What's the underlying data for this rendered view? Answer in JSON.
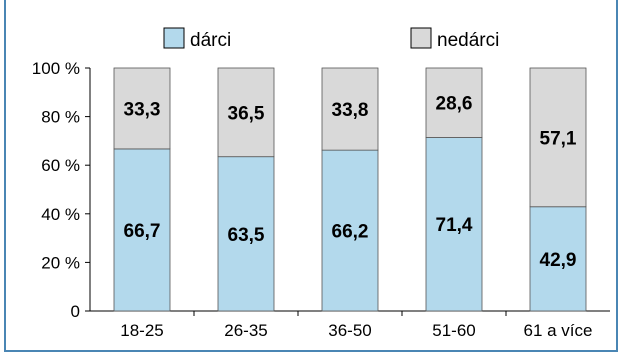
{
  "chart_data": {
    "type": "bar",
    "stacked": true,
    "categories": [
      "18-25",
      "26-35",
      "36-50",
      "51-60",
      "61 a více"
    ],
    "series": [
      {
        "name": "dárci",
        "values": [
          66.7,
          63.5,
          66.2,
          71.4,
          42.9
        ],
        "color": "#b3d9ec"
      },
      {
        "name": "nedárci",
        "values": [
          33.3,
          36.5,
          33.8,
          28.6,
          57.1
        ],
        "color": "#d9d9d9"
      }
    ],
    "data_labels": {
      "dárci": [
        "66,7",
        "63,5",
        "66,2",
        "71,4",
        "42,9"
      ],
      "nedárci": [
        "33,3",
        "36,5",
        "33,8",
        "28,6",
        "57,1"
      ]
    },
    "yticks": [
      "0",
      "20 %",
      "40 %",
      "60 %",
      "80 %",
      "100 %"
    ],
    "ylim": [
      0,
      100
    ],
    "grid": false,
    "legend": "top"
  }
}
